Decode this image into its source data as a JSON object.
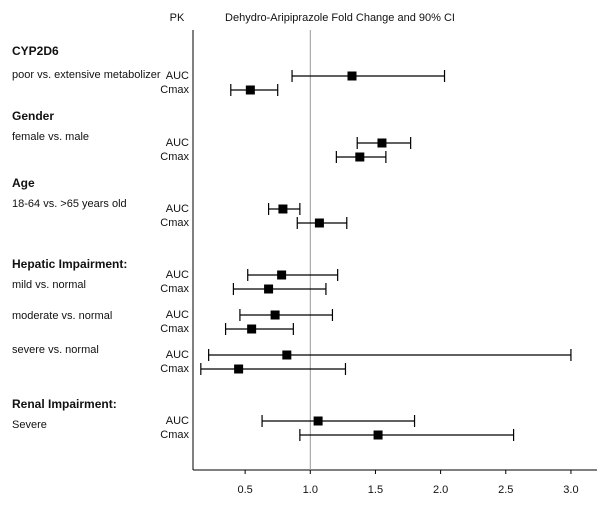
{
  "chart_data": {
    "type": "forest",
    "pk_label": "PK",
    "title": "Dehydro-Aripiprazole Fold Change and 90% CI",
    "xlim": [
      0.1,
      3.2
    ],
    "xticks": [
      0.5,
      {
        "value": 1,
        "label": "1.0"
      },
      1.5,
      {
        "value": 2,
        "label": "2.0"
      },
      2.5,
      {
        "value": 3,
        "label": "3.0"
      }
    ],
    "reference_line": 1,
    "color": "#000000",
    "groups": [
      {
        "name": "CYP2D6",
        "subgroups": [
          {
            "name": "poor vs. extensive metabolizer",
            "rows": [
              {
                "pk": "AUC",
                "value": 1.32,
                "low": 0.86,
                "high": 2.03
              },
              {
                "pk": "Cmax",
                "value": 0.54,
                "low": 0.39,
                "high": 0.75
              }
            ]
          }
        ]
      },
      {
        "name": "Gender",
        "subgroups": [
          {
            "name": "female vs. male",
            "rows": [
              {
                "pk": "AUC",
                "value": 1.55,
                "low": 1.36,
                "high": 1.77
              },
              {
                "pk": "Cmax",
                "value": 1.38,
                "low": 1.2,
                "high": 1.58
              }
            ]
          }
        ]
      },
      {
        "name": "Age",
        "subgroups": [
          {
            "name": "18-64 vs. >65 years old",
            "rows": [
              {
                "pk": "AUC",
                "value": 0.79,
                "low": 0.68,
                "high": 0.92
              },
              {
                "pk": "Cmax",
                "value": 1.07,
                "low": 0.9,
                "high": 1.28
              }
            ]
          }
        ]
      },
      {
        "name": "Hepatic Impairment:",
        "subgroups": [
          {
            "name": "mild vs. normal",
            "rows": [
              {
                "pk": "AUC",
                "value": 0.78,
                "low": 0.52,
                "high": 1.21
              },
              {
                "pk": "Cmax",
                "value": 0.68,
                "low": 0.41,
                "high": 1.12
              }
            ]
          },
          {
            "name": "moderate vs. normal",
            "rows": [
              {
                "pk": "AUC",
                "value": 0.73,
                "low": 0.46,
                "high": 1.17
              },
              {
                "pk": "Cmax",
                "value": 0.55,
                "low": 0.35,
                "high": 0.87
              }
            ]
          },
          {
            "name": "severe vs. normal",
            "rows": [
              {
                "pk": "AUC",
                "value": 0.82,
                "low": 0.22,
                "high": 3.0
              },
              {
                "pk": "Cmax",
                "value": 0.45,
                "low": 0.16,
                "high": 1.27
              }
            ]
          }
        ]
      },
      {
        "name": "Renal Impairment:",
        "subgroups": [
          {
            "name": "Severe",
            "rows": [
              {
                "pk": "AUC",
                "value": 1.06,
                "low": 0.63,
                "high": 1.8
              },
              {
                "pk": "Cmax",
                "value": 1.52,
                "low": 0.92,
                "high": 2.56
              }
            ]
          }
        ]
      }
    ]
  }
}
